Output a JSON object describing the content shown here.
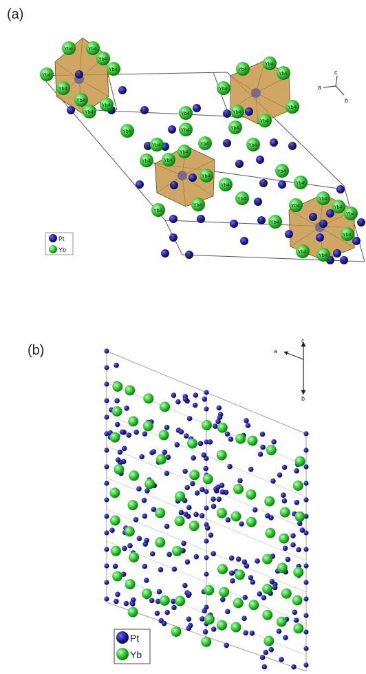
{
  "panels": [
    {
      "label": "(a)",
      "axes": {
        "a": "a",
        "c": "c",
        "b": "b"
      },
      "legend": [
        {
          "label": "Pt",
          "color": "#1f1f9a"
        },
        {
          "label": "Yb",
          "color": "#33cc33"
        }
      ],
      "atom_labels": {
        "yb": "Yb4",
        "pt": "Pt2"
      }
    },
    {
      "label": "(b)",
      "axes": {
        "a": "a",
        "c": "c",
        "b": "b"
      },
      "legend": [
        {
          "label": "Pt",
          "color": "#1f1f9a"
        },
        {
          "label": "Yb",
          "color": "#33cc33"
        }
      ]
    }
  ],
  "colors": {
    "pt": "#1f1f9a",
    "yb": "#33cc33",
    "polyhedron": "#c8964a",
    "cell_line": "#555555"
  }
}
